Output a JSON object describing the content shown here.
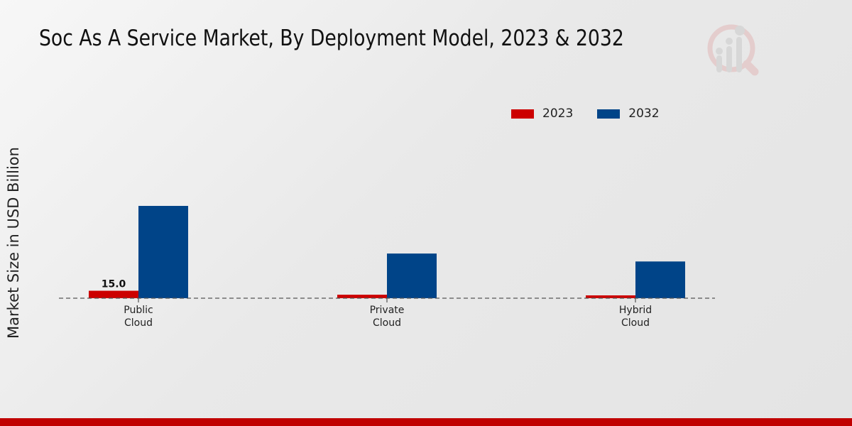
{
  "chart_data": {
    "type": "bar",
    "title": "Soc As A Service Market, By Deployment Model, 2023 & 2032",
    "xlabel": "",
    "ylabel": "Market Size in USD Billion",
    "categories": [
      "Public\nCloud",
      "Private\nCloud",
      "Hybrid\nCloud"
    ],
    "series": [
      {
        "name": "2023",
        "color": "#cc0000",
        "values": [
          15.0,
          7.0,
          5.7
        ]
      },
      {
        "name": "2032",
        "color": "#004488",
        "values": [
          186,
          90,
          74
        ]
      }
    ],
    "data_labels": [
      {
        "series": "2023",
        "category_index": 0,
        "text": "15.0"
      }
    ],
    "ylim": [
      0,
      186
    ],
    "grid": false,
    "legend": "top-right"
  }
}
